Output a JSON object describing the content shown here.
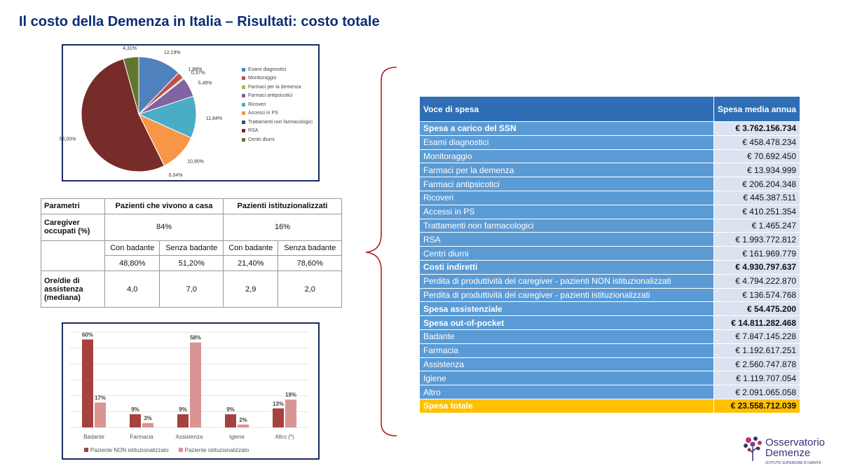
{
  "title": "Il costo della Demenza in Italia – Risultati: costo totale",
  "pie": {
    "chart_data": {
      "type": "pie",
      "labels": [
        "Esami diagnostici",
        "Monitoraggio",
        "Farmaci per la demenza",
        "Farmaci antipsicotici",
        "Ricoveri",
        "Accessi in PS",
        "Trattamenti non farmacologici",
        "RSA",
        "Centri diurni"
      ],
      "values": [
        12.19,
        1.88,
        0.37,
        5.48,
        11.84,
        10.9,
        0.04,
        53.0,
        4.31
      ],
      "value_labels": [
        "12,19%",
        "1,88%",
        "0,37%",
        "5,48%",
        "11,84%",
        "10,90%",
        "0,04%",
        "53,00%",
        "4,31%"
      ],
      "colors": [
        "#4f81bd",
        "#c0504d",
        "#9bbb59",
        "#8064a2",
        "#4bacc6",
        "#f79646",
        "#2c4d75",
        "#772c2a",
        "#5f7530"
      ]
    }
  },
  "params": {
    "h_param": "Parametri",
    "h_home": "Pazienti che vivono a casa",
    "h_inst": "Pazienti istituzionalizzati",
    "r1_label": "Caregiver occupati (%)",
    "r1_home": "84%",
    "r1_inst": "16%",
    "r2_a": "Con badante",
    "r2_b": "Senza badante",
    "r2_c": "Con badante",
    "r2_d": "Senza badante",
    "r3_a": "48,80%",
    "r3_b": "51,20%",
    "r3_c": "21,40%",
    "r3_d": "78,60%",
    "r4_label": "Ore/die di assistenza (mediana)",
    "r4_a": "4,0",
    "r4_b": "7,0",
    "r4_c": "2,9",
    "r4_d": "2,0"
  },
  "bars": {
    "chart_data": {
      "type": "bar",
      "categories": [
        "Badante",
        "Farmacia",
        "Assistenza",
        "Igiene",
        "Altro (*)"
      ],
      "series": [
        {
          "name": "Paziente NON istituzionalizzato",
          "values": [
            60,
            9,
            9,
            9,
            13
          ],
          "labels": [
            "60%",
            "9%",
            "9%",
            "9%",
            "13%"
          ],
          "color": "#a5413f"
        },
        {
          "name": "Paziente istituzionalizzato",
          "values": [
            17,
            3,
            58,
            2,
            19
          ],
          "labels": [
            "17%",
            "3%",
            "58%",
            "2%",
            "19%"
          ],
          "color": "#d99594"
        }
      ],
      "ylim": [
        0,
        65
      ]
    }
  },
  "cost_table": {
    "header_label": "Voce di spesa",
    "header_amount": "Spesa media annua",
    "rows": [
      {
        "label": "Spesa a carico del SSN",
        "amount": "€ 3.762.156.734",
        "bold": true
      },
      {
        "label": "Esami diagnostici",
        "amount": "€ 458.478.234"
      },
      {
        "label": "Monitoraggio",
        "amount": "€ 70.692.450"
      },
      {
        "label": "Farmaci per la demenza",
        "amount": "€ 13.934.999"
      },
      {
        "label": "Farmaci antipsicotici",
        "amount": "€ 206.204.348"
      },
      {
        "label": "Ricoveri",
        "amount": "€ 445.387.511"
      },
      {
        "label": "Accessi in PS",
        "amount": "€ 410.251.354"
      },
      {
        "label": "Trattamenti non farmacologici",
        "amount": "€ 1.465.247"
      },
      {
        "label": "RSA",
        "amount": "€ 1.993.772.812"
      },
      {
        "label": "Centri diurni",
        "amount": "€ 161.969.779"
      },
      {
        "label": "Costi indiretti",
        "amount": "€ 4.930.797.637",
        "bold": true
      },
      {
        "label": "Perdita di produttività del caregiver - pazienti NON istituzionalizzati",
        "amount": "€ 4.794.222.870"
      },
      {
        "label": "Perdita di produttività del caregiver - pazienti istituzionalizzati",
        "amount": "€ 136.574.768"
      },
      {
        "label": "Spesa assistenziale",
        "amount": "€ 54.475.200",
        "bold": true
      },
      {
        "label": "Spesa out-of-pocket",
        "amount": "€ 14.811.282.468",
        "bold": true
      },
      {
        "label": "Badante",
        "amount": "€ 7.847.145.228"
      },
      {
        "label": "Farmacia",
        "amount": "€ 1.192.617.251"
      },
      {
        "label": "Assistenza",
        "amount": "€ 2.560.747.878"
      },
      {
        "label": "Igiene",
        "amount": "€ 1.119.707.054"
      },
      {
        "label": "Altro",
        "amount": "€ 2.091.065.058"
      },
      {
        "label": "Spesa totale",
        "amount": "€ 23.558.712.039",
        "bold": true,
        "total": true
      }
    ]
  },
  "logo": {
    "line1": "Osservatorio",
    "line2": "Demenze",
    "sub": "ISTITUTO SUPERIORE DI SANITÀ"
  }
}
